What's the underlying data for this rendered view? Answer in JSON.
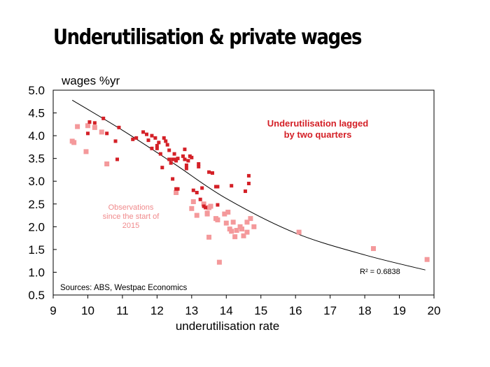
{
  "title": "Underutilisation & private wages",
  "chart_data": {
    "type": "scatter",
    "ylabel": "wages %yr",
    "xlabel": "underutilisation rate",
    "xlim": [
      9,
      20
    ],
    "ylim": [
      0.5,
      5.0
    ],
    "x_ticks": [
      "9",
      "10",
      "11",
      "12",
      "13",
      "14",
      "15",
      "16",
      "17",
      "18",
      "19",
      "20"
    ],
    "y_ticks": [
      "0.5",
      "1.0",
      "1.5",
      "2.0",
      "2.5",
      "3.0",
      "3.5",
      "4.0",
      "4.5",
      "5.0"
    ],
    "grid": false,
    "colors": {
      "lagged": "#d42027",
      "since2015": "#f4999b",
      "trend": "#000000"
    },
    "series": [
      {
        "name": "Underutilisation lagged by two quarters",
        "points": [
          [
            10.0,
            4.05
          ],
          [
            10.05,
            4.3
          ],
          [
            10.2,
            4.28
          ],
          [
            10.45,
            4.38
          ],
          [
            10.55,
            4.05
          ],
          [
            10.8,
            3.88
          ],
          [
            10.85,
            3.48
          ],
          [
            10.9,
            4.18
          ],
          [
            11.3,
            3.92
          ],
          [
            11.4,
            3.95
          ],
          [
            11.6,
            4.08
          ],
          [
            11.7,
            4.03
          ],
          [
            11.75,
            3.9
          ],
          [
            11.85,
            4.0
          ],
          [
            11.85,
            3.72
          ],
          [
            11.95,
            3.95
          ],
          [
            12.0,
            3.78
          ],
          [
            12.0,
            3.72
          ],
          [
            12.05,
            3.85
          ],
          [
            12.1,
            3.6
          ],
          [
            12.15,
            3.3
          ],
          [
            12.2,
            3.95
          ],
          [
            12.25,
            3.88
          ],
          [
            12.3,
            3.8
          ],
          [
            12.35,
            3.68
          ],
          [
            12.35,
            3.48
          ],
          [
            12.4,
            3.4
          ],
          [
            12.45,
            3.48
          ],
          [
            12.5,
            3.6
          ],
          [
            12.5,
            3.48
          ],
          [
            12.55,
            3.45
          ],
          [
            12.6,
            3.5
          ],
          [
            12.45,
            3.05
          ],
          [
            12.55,
            2.83
          ],
          [
            12.6,
            2.83
          ],
          [
            12.75,
            3.55
          ],
          [
            12.8,
            3.7
          ],
          [
            12.8,
            3.48
          ],
          [
            12.85,
            3.35
          ],
          [
            12.85,
            3.28
          ],
          [
            12.9,
            3.45
          ],
          [
            12.95,
            3.55
          ],
          [
            13.0,
            3.52
          ],
          [
            13.05,
            2.8
          ],
          [
            13.15,
            2.75
          ],
          [
            13.2,
            3.38
          ],
          [
            13.2,
            3.32
          ],
          [
            13.25,
            2.6
          ],
          [
            13.3,
            2.85
          ],
          [
            13.35,
            2.45
          ],
          [
            13.4,
            2.42
          ],
          [
            13.5,
            3.2
          ],
          [
            13.6,
            3.18
          ],
          [
            13.7,
            2.88
          ],
          [
            13.75,
            2.88
          ],
          [
            13.75,
            2.48
          ],
          [
            14.15,
            2.9
          ],
          [
            14.55,
            2.78
          ],
          [
            14.65,
            3.12
          ],
          [
            14.65,
            2.95
          ]
        ]
      },
      {
        "name": "Observations since the start of 2015",
        "points": [
          [
            9.55,
            3.88
          ],
          [
            9.6,
            3.85
          ],
          [
            9.7,
            4.2
          ],
          [
            9.95,
            3.65
          ],
          [
            10.0,
            4.22
          ],
          [
            10.2,
            4.18
          ],
          [
            10.4,
            4.08
          ],
          [
            10.55,
            3.38
          ],
          [
            12.55,
            2.75
          ],
          [
            13.0,
            2.4
          ],
          [
            13.05,
            2.55
          ],
          [
            13.15,
            2.25
          ],
          [
            13.35,
            2.5
          ],
          [
            13.45,
            2.3
          ],
          [
            13.45,
            2.28
          ],
          [
            13.5,
            2.42
          ],
          [
            13.55,
            2.45
          ],
          [
            13.5,
            1.77
          ],
          [
            13.7,
            2.18
          ],
          [
            13.75,
            2.15
          ],
          [
            13.8,
            1.22
          ],
          [
            13.95,
            2.28
          ],
          [
            14.0,
            2.08
          ],
          [
            14.05,
            2.32
          ],
          [
            14.1,
            1.95
          ],
          [
            14.15,
            1.9
          ],
          [
            14.2,
            2.1
          ],
          [
            14.25,
            1.78
          ],
          [
            14.3,
            1.92
          ],
          [
            14.4,
            2.0
          ],
          [
            14.45,
            1.95
          ],
          [
            14.5,
            1.8
          ],
          [
            14.6,
            1.88
          ],
          [
            14.6,
            2.1
          ],
          [
            14.7,
            2.18
          ],
          [
            14.8,
            2.0
          ],
          [
            16.1,
            1.88
          ],
          [
            18.25,
            1.52
          ],
          [
            19.8,
            1.28
          ]
        ]
      }
    ],
    "trendline": {
      "label": "R² = 0.6838",
      "points": [
        [
          9.55,
          4.78
        ],
        [
          11.0,
          4.12
        ],
        [
          12.5,
          3.38
        ],
        [
          14.0,
          2.62
        ],
        [
          16.0,
          1.86
        ],
        [
          18.0,
          1.38
        ],
        [
          19.75,
          1.05
        ]
      ]
    },
    "annotations": {
      "lagged_line1": "Underutilisation lagged",
      "lagged_line2": "by two quarters",
      "recent_line1": "Observations",
      "recent_line2": "since the start of",
      "recent_line3": "2015",
      "source": "Sources: ABS, Westpac Economics"
    }
  }
}
